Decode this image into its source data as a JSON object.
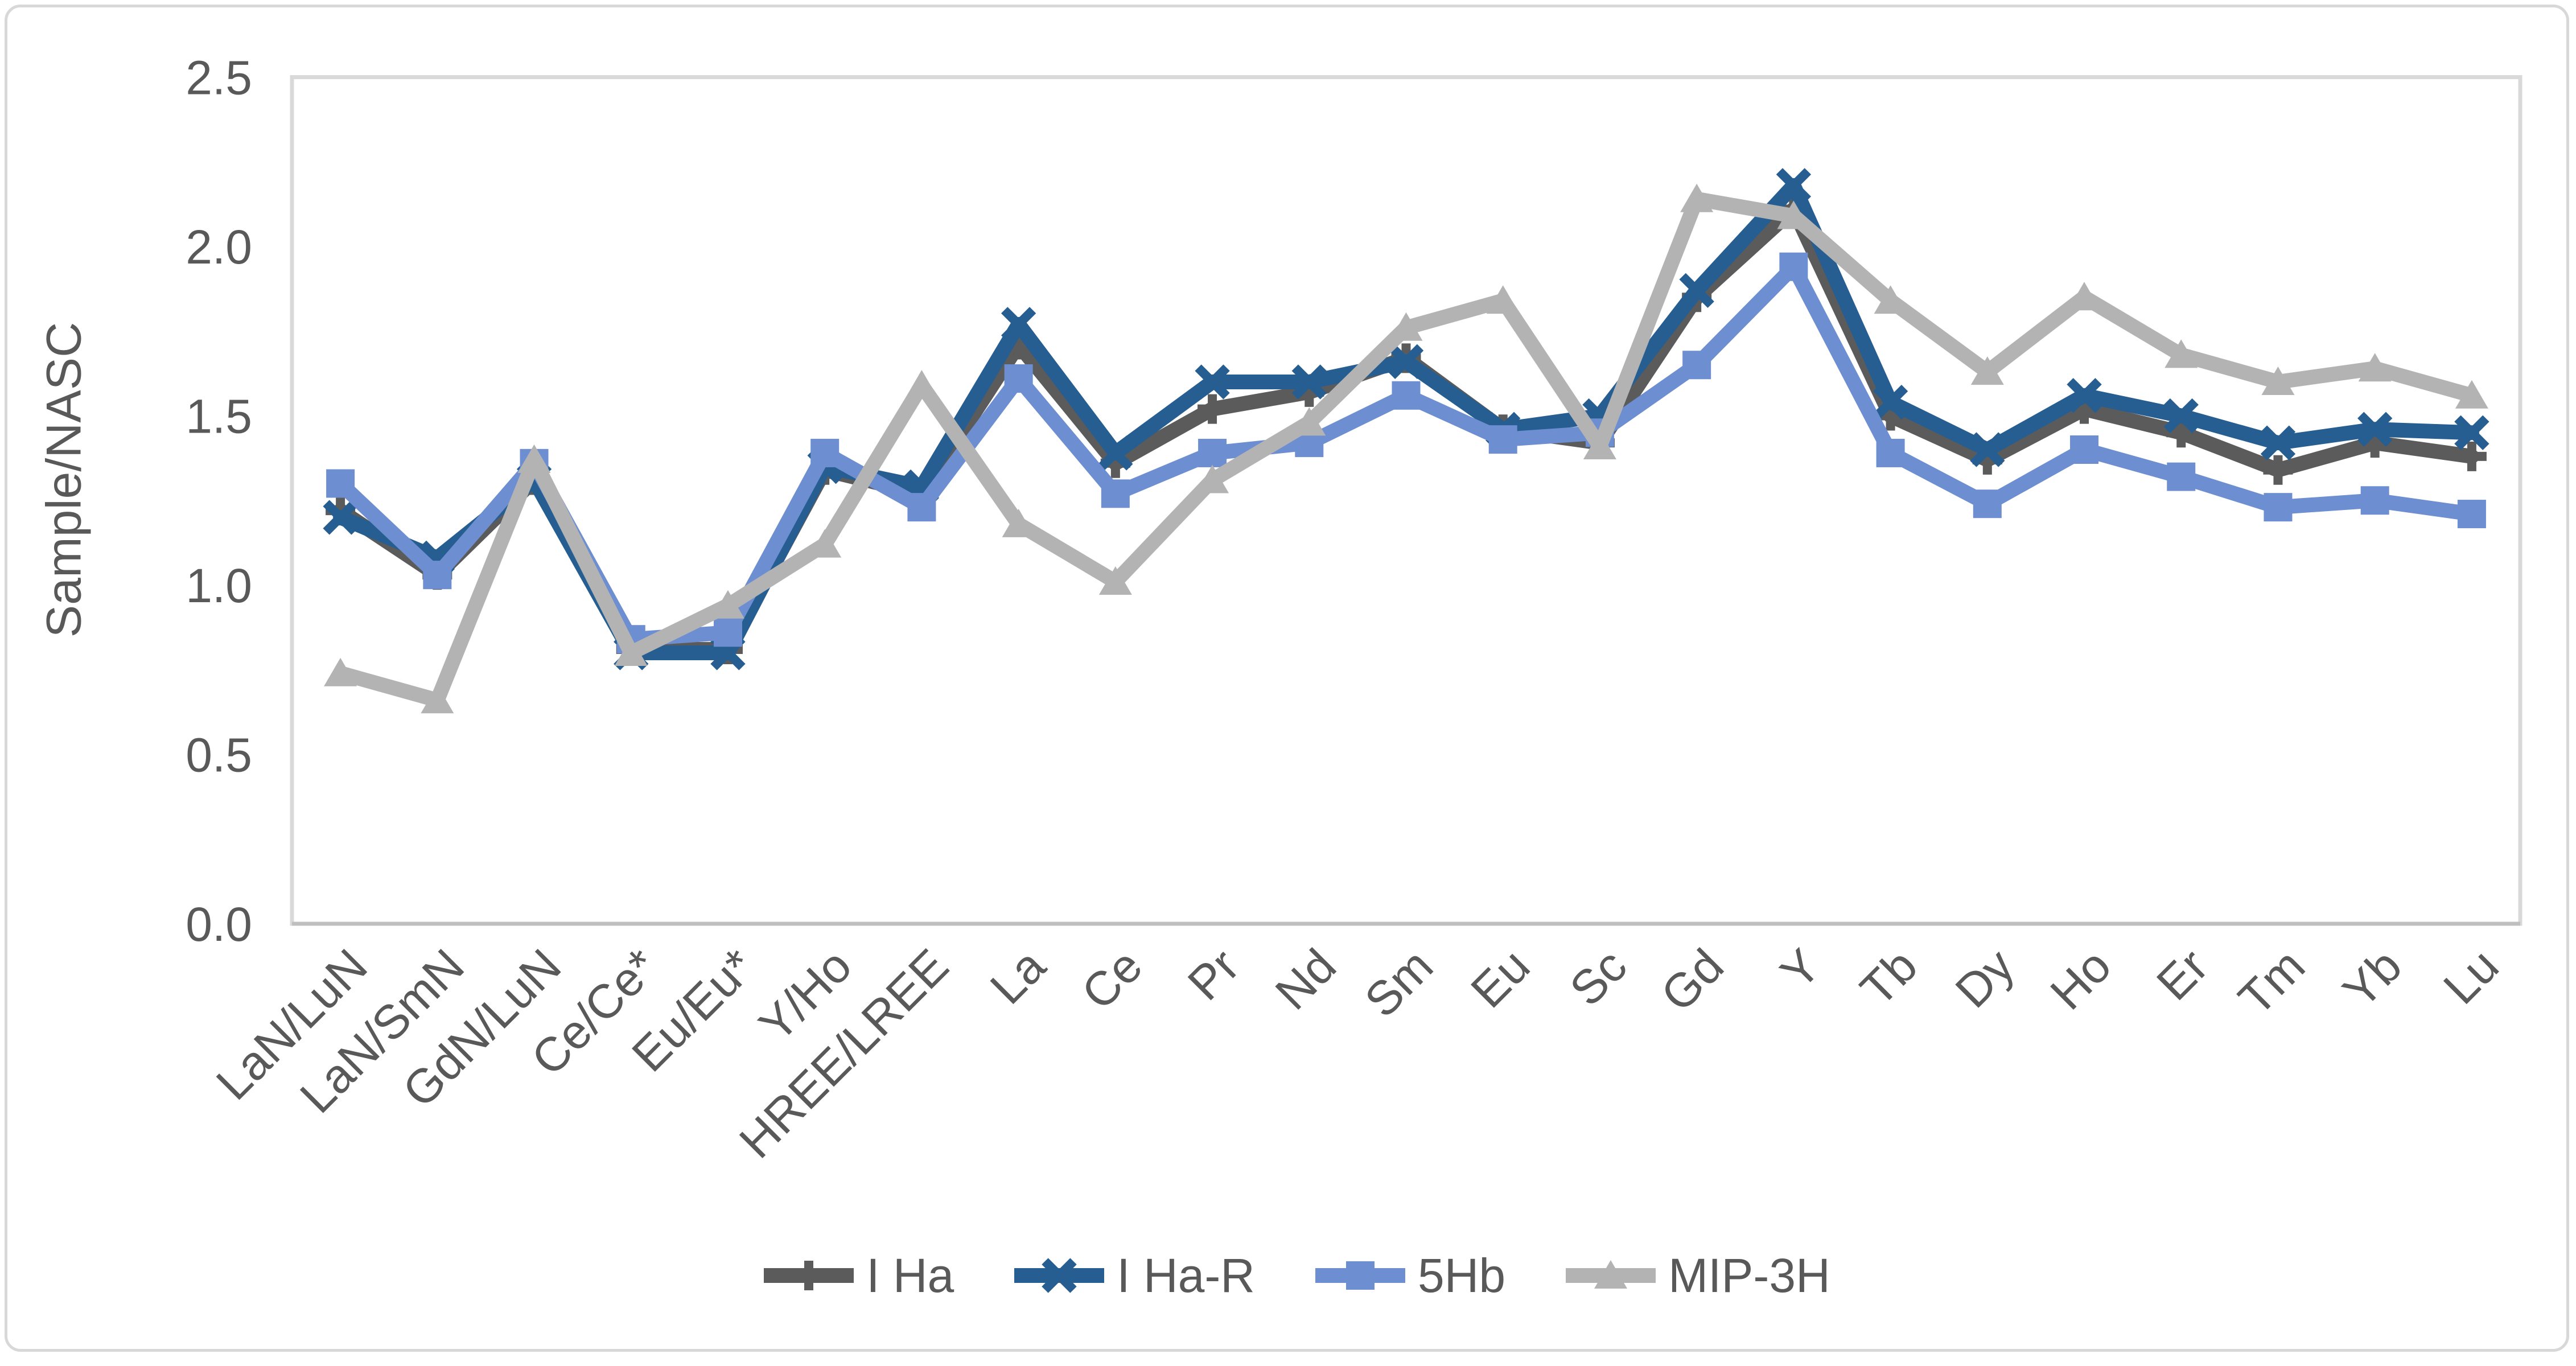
{
  "chart_data": {
    "type": "line",
    "title": "",
    "xlabel": "",
    "ylabel": "Sample/NASC",
    "ylim": [
      0.0,
      2.5
    ],
    "yticks": [
      0.0,
      0.5,
      1.0,
      1.5,
      2.0,
      2.5
    ],
    "ytick_labels": [
      "0.0",
      "0.5",
      "1.0",
      "1.5",
      "2.0",
      "2.5"
    ],
    "grid": false,
    "legend_position": "bottom",
    "x_label_rotation_deg": -45,
    "categories": [
      "LaN/LuN",
      "LaN/SmN",
      "GdN/LuN",
      "Ce/Ce*",
      "Eu/Eu*",
      "Y/Ho",
      "HREE/LREE",
      "La",
      "Ce",
      "Pr",
      "Nd",
      "Sm",
      "Eu",
      "Sc",
      "Gd",
      "Y",
      "Tb",
      "Dy",
      "Ho",
      "Er",
      "Tm",
      "Yb",
      "Lu"
    ],
    "series": [
      {
        "name": "I Ha",
        "color": "#5B5B5B",
        "marker": "plus",
        "values": [
          1.22,
          1.03,
          1.31,
          0.81,
          0.81,
          1.34,
          1.27,
          1.71,
          1.36,
          1.52,
          1.57,
          1.67,
          1.46,
          1.42,
          1.85,
          2.11,
          1.5,
          1.37,
          1.52,
          1.45,
          1.34,
          1.42,
          1.38
        ]
      },
      {
        "name": "I Ha-R",
        "color": "#265E91",
        "marker": "x",
        "values": [
          1.2,
          1.08,
          1.31,
          0.8,
          0.8,
          1.35,
          1.29,
          1.77,
          1.39,
          1.6,
          1.6,
          1.66,
          1.46,
          1.5,
          1.87,
          2.18,
          1.54,
          1.4,
          1.56,
          1.5,
          1.42,
          1.46,
          1.45
        ]
      },
      {
        "name": "5Hb",
        "color": "#6D8FD2",
        "marker": "square",
        "values": [
          1.3,
          1.03,
          1.36,
          0.84,
          0.86,
          1.39,
          1.23,
          1.61,
          1.27,
          1.39,
          1.42,
          1.56,
          1.43,
          1.45,
          1.65,
          1.94,
          1.39,
          1.24,
          1.4,
          1.32,
          1.23,
          1.25,
          1.21
        ]
      },
      {
        "name": "MIP-3H",
        "color": "#B3B3B3",
        "marker": "triangle",
        "values": [
          0.74,
          0.66,
          1.37,
          0.8,
          0.94,
          1.12,
          1.59,
          1.18,
          1.01,
          1.31,
          1.48,
          1.76,
          1.84,
          1.41,
          2.14,
          2.09,
          1.84,
          1.63,
          1.85,
          1.68,
          1.6,
          1.64,
          1.56
        ]
      }
    ],
    "colors": {
      "text": "#595959",
      "plot_border": "#D9D9D9",
      "axis_line": "#BFBFBF",
      "background": "#FFFFFF"
    }
  }
}
